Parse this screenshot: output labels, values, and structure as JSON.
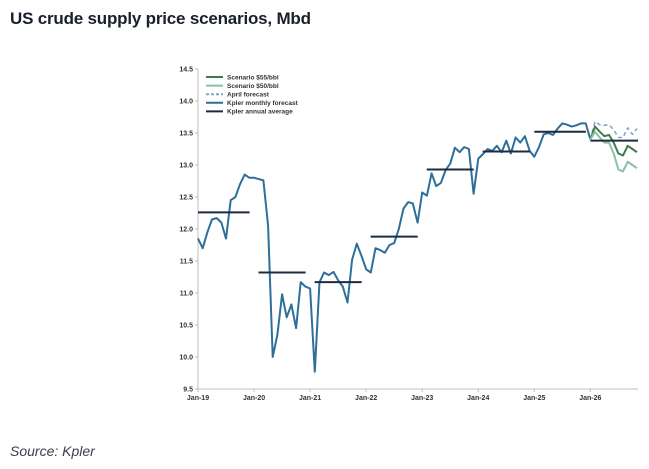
{
  "page": {
    "title": "US crude supply price scenarios, Mbd",
    "source": "Source: Kpler"
  },
  "chart_data": {
    "type": "line",
    "title": "US crude supply price scenarios, Mbd",
    "xlabel": "",
    "ylabel": "",
    "ylim": [
      9.5,
      14.5
    ],
    "yticks": [
      9.5,
      10.0,
      10.5,
      11.0,
      11.5,
      12.0,
      12.5,
      13.0,
      13.5,
      14.0,
      14.5
    ],
    "ytick_labels": [
      "9.5",
      "10.0",
      "10.5",
      "11.0",
      "11.5",
      "12.0",
      "12.5",
      "13.0",
      "13.5",
      "14.0",
      "14.5"
    ],
    "xlim": [
      2019.0,
      2026.85
    ],
    "xticks": [
      2019,
      2020,
      2021,
      2022,
      2023,
      2024,
      2025,
      2026
    ],
    "xtick_labels": [
      "Jan-19",
      "Jan-20",
      "Jan-21",
      "Jan-22",
      "Jan-23",
      "Jan-24",
      "Jan-25",
      "Jan-26"
    ],
    "grid": false,
    "legend_position": "top-left",
    "colors": {
      "monthly": "#2e6f9a",
      "annual": "#1c2b3f",
      "april": "#7ea8c9",
      "s55": "#3e7a4c",
      "s50": "#8bbfa6"
    },
    "series": [
      {
        "name": "Kpler monthly forecast",
        "style": "solid",
        "color": "#2e6f9a",
        "x": [
          2019.0,
          2019.083,
          2019.167,
          2019.25,
          2019.333,
          2019.417,
          2019.5,
          2019.583,
          2019.667,
          2019.75,
          2019.833,
          2019.917,
          2020.0,
          2020.083,
          2020.167,
          2020.25,
          2020.333,
          2020.417,
          2020.5,
          2020.583,
          2020.667,
          2020.75,
          2020.833,
          2020.917,
          2021.0,
          2021.083,
          2021.167,
          2021.25,
          2021.333,
          2021.417,
          2021.5,
          2021.583,
          2021.667,
          2021.75,
          2021.833,
          2021.917,
          2022.0,
          2022.083,
          2022.167,
          2022.25,
          2022.333,
          2022.417,
          2022.5,
          2022.583,
          2022.667,
          2022.75,
          2022.833,
          2022.917,
          2023.0,
          2023.083,
          2023.167,
          2023.25,
          2023.333,
          2023.417,
          2023.5,
          2023.583,
          2023.667,
          2023.75,
          2023.833,
          2023.917,
          2024.0,
          2024.083,
          2024.167,
          2024.25,
          2024.333,
          2024.417,
          2024.5,
          2024.583,
          2024.667,
          2024.75,
          2024.833,
          2024.917,
          2025.0,
          2025.083,
          2025.167,
          2025.25,
          2025.333,
          2025.417,
          2025.5,
          2025.583,
          2025.667,
          2025.75,
          2025.833,
          2025.917,
          2026.0
        ],
        "values": [
          11.85,
          11.7,
          11.95,
          12.15,
          12.17,
          12.1,
          11.85,
          12.45,
          12.5,
          12.7,
          12.85,
          12.8,
          12.8,
          12.78,
          12.76,
          12.05,
          10.0,
          10.35,
          10.98,
          10.62,
          10.82,
          10.45,
          11.17,
          11.1,
          11.07,
          9.77,
          11.17,
          11.32,
          11.28,
          11.33,
          11.2,
          11.1,
          10.85,
          11.52,
          11.77,
          11.58,
          11.37,
          11.32,
          11.7,
          11.67,
          11.63,
          11.75,
          11.78,
          12.0,
          12.32,
          12.42,
          12.4,
          12.1,
          12.57,
          12.52,
          12.87,
          12.67,
          12.72,
          12.92,
          13.02,
          13.27,
          13.2,
          13.28,
          13.25,
          12.55,
          13.1,
          13.17,
          13.25,
          13.22,
          13.3,
          13.2,
          13.38,
          13.18,
          13.43,
          13.35,
          13.45,
          13.22,
          13.13,
          13.28,
          13.48,
          13.5,
          13.47,
          13.57,
          13.65,
          13.63,
          13.6,
          13.62,
          13.65,
          13.65,
          13.4
        ]
      },
      {
        "name": "April forecast",
        "style": "dashed",
        "color": "#7ea8c9",
        "x": [
          2026.0,
          2026.083,
          2026.167,
          2026.25,
          2026.333,
          2026.417,
          2026.5,
          2026.583,
          2026.667,
          2026.75,
          2026.833
        ],
        "values": [
          13.4,
          13.68,
          13.63,
          13.62,
          13.63,
          13.55,
          13.43,
          13.43,
          13.58,
          13.48,
          13.57
        ]
      },
      {
        "name": "Scenario $55/bbl",
        "style": "solid",
        "color": "#3e7a4c",
        "x": [
          2026.0,
          2026.083,
          2026.167,
          2026.25,
          2026.333,
          2026.417,
          2026.5,
          2026.583,
          2026.667,
          2026.75,
          2026.833
        ],
        "values": [
          13.4,
          13.6,
          13.52,
          13.45,
          13.47,
          13.35,
          13.18,
          13.15,
          13.3,
          13.25,
          13.2
        ]
      },
      {
        "name": "Scenario $50/bbl",
        "style": "solid",
        "color": "#8bbfa6",
        "x": [
          2026.0,
          2026.083,
          2026.167,
          2026.25,
          2026.333,
          2026.417,
          2026.5,
          2026.583,
          2026.667,
          2026.75,
          2026.833
        ],
        "values": [
          13.4,
          13.52,
          13.43,
          13.35,
          13.35,
          13.18,
          12.93,
          12.9,
          13.05,
          13.0,
          12.95
        ]
      },
      {
        "name": "Kpler annual average",
        "style": "step",
        "color": "#1c2b3f",
        "segments": [
          {
            "x0": 2019.0,
            "x1": 2019.92,
            "value": 12.26
          },
          {
            "x0": 2020.08,
            "x1": 2020.92,
            "value": 11.32
          },
          {
            "x0": 2021.08,
            "x1": 2021.92,
            "value": 11.17
          },
          {
            "x0": 2022.08,
            "x1": 2022.92,
            "value": 11.88
          },
          {
            "x0": 2023.08,
            "x1": 2023.92,
            "value": 12.93
          },
          {
            "x0": 2024.08,
            "x1": 2024.92,
            "value": 13.21
          },
          {
            "x0": 2025.0,
            "x1": 2025.92,
            "value": 13.52
          },
          {
            "x0": 2026.0,
            "x1": 2026.85,
            "value": 13.38
          }
        ]
      }
    ],
    "legend": [
      {
        "label": "Scenario $55/bbl",
        "color": "#3e7a4c",
        "style": "solid"
      },
      {
        "label": "Scenario $50/bbl",
        "color": "#8bbfa6",
        "style": "solid"
      },
      {
        "label": "April forecast",
        "color": "#7ea8c9",
        "style": "dashed"
      },
      {
        "label": "Kpler monthly forecast",
        "color": "#2e6f9a",
        "style": "solid"
      },
      {
        "label": "Kpler annual average",
        "color": "#1c2b3f",
        "style": "solid"
      }
    ]
  }
}
